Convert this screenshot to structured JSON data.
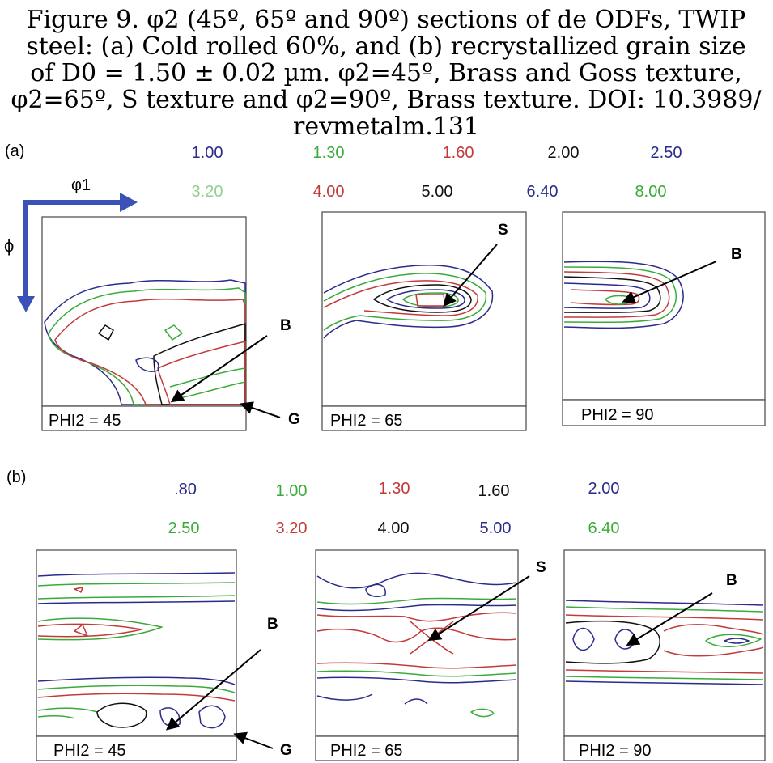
{
  "caption": {
    "lines": [
      "Figure 9.    φ2 (45º, 65º and 90º) sections of de ODFs, TWIP",
      "steel: (a) Cold rolled 60%, and (b) recrystallized grain size",
      "of  D0 = 1.50 ± 0.02 µm. φ2=45º, Brass and Goss texture,",
      "φ2=65º, S texture and φ2=90º, Brass texture.  DOI: 10.3989/",
      "revmetalm.131"
    ]
  },
  "part_a": {
    "tag": "(a)",
    "legend_row1": [
      "1.00",
      "1.30",
      "1.60",
      "2.00",
      "2.50"
    ],
    "legend_row2": [
      "3.20",
      "4.00",
      "5.00",
      "6.40",
      "8.00"
    ],
    "axis_phi1": "φ1",
    "axis_phi": "ϕ",
    "panels": [
      "PHI2 = 45",
      "PHI2 = 65",
      "PHI2 = 90"
    ],
    "markers": [
      "B",
      "G",
      "S",
      "B"
    ]
  },
  "part_b": {
    "tag": "(b)",
    "legend_row1": [
      ".80",
      "1.00",
      "1.30",
      "1.60",
      "2.00"
    ],
    "legend_row2": [
      "2.50",
      "3.20",
      "4.00",
      "5.00",
      "6.40"
    ],
    "panels": [
      "PHI2 = 45",
      "PHI2 = 65",
      "PHI2 = 90"
    ],
    "markers": [
      "B",
      "G",
      "S",
      "B"
    ]
  },
  "colors": {
    "blue": "#2b2b8c",
    "green": "#3aaa3a",
    "red": "#c23a3a",
    "black": "#111111",
    "axis_blue": "#3a52b8"
  }
}
